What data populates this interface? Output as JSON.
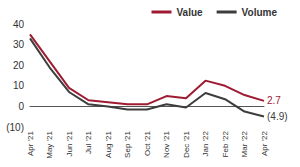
{
  "chart_data": {
    "type": "line",
    "categories": [
      "Apr '21",
      "May '21",
      "Jun '21",
      "Jul '21",
      "Aug '21",
      "Sep '21",
      "Oct '21",
      "Nov '21",
      "Dec '21",
      "Jan '22",
      "Feb '22",
      "Mar '22",
      "Apr '22"
    ],
    "series": [
      {
        "name": "Value",
        "color": "#9e1b32",
        "values": [
          35,
          22,
          9,
          3,
          2,
          1,
          1,
          5,
          4,
          12.5,
          10,
          5.5,
          2.7
        ],
        "value_labels": [
          null,
          null,
          null,
          null,
          null,
          null,
          null,
          null,
          null,
          null,
          null,
          null,
          "2.7"
        ]
      },
      {
        "name": "Volume",
        "color": "#3d3d3d",
        "values": [
          33,
          19,
          7,
          1,
          0,
          -1.5,
          -1.5,
          1,
          -0.5,
          6.5,
          3.5,
          -2.5,
          -4.9
        ],
        "value_labels": [
          null,
          null,
          null,
          null,
          null,
          null,
          null,
          null,
          null,
          null,
          null,
          null,
          "(4.9)"
        ]
      }
    ],
    "ylim": [
      -10,
      40
    ],
    "yticks": [
      {
        "value": -10,
        "label": "(10)"
      },
      0,
      10,
      20,
      30,
      40
    ],
    "grid": false,
    "legend": "top-right"
  }
}
